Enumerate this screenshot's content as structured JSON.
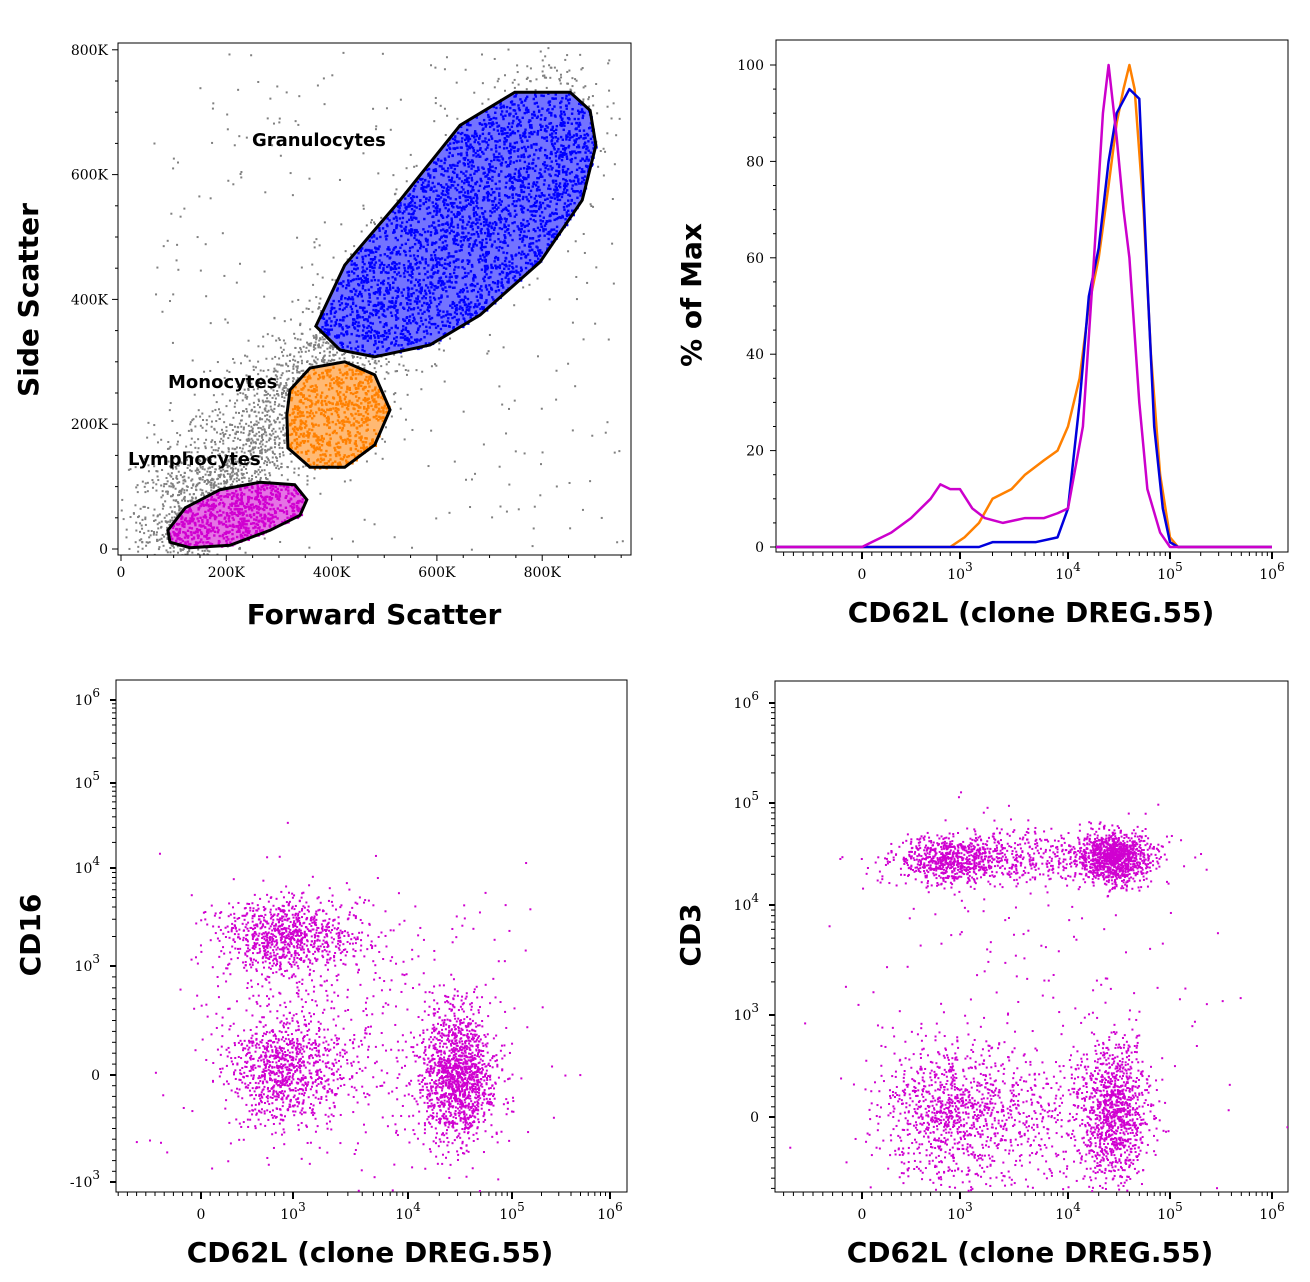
{
  "chart_data": [
    {
      "type": "scatter",
      "xlabel": "Forward Scatter",
      "ylabel": "Side Scatter",
      "xlim": [
        0,
        960
      ],
      "ylim": [
        0,
        810
      ],
      "units": "K",
      "x_ticks": [
        {
          "value": 0,
          "text": "0"
        },
        {
          "value": 200,
          "text": "200K"
        },
        {
          "value": 400,
          "text": "400K"
        },
        {
          "value": 600,
          "text": "600K"
        },
        {
          "value": 800,
          "text": "800K"
        }
      ],
      "y_ticks": [
        {
          "value": 0,
          "text": "0"
        },
        {
          "value": 200,
          "text": "200K"
        },
        {
          "value": 400,
          "text": "400K"
        },
        {
          "value": 600,
          "text": "600K"
        },
        {
          "value": 800,
          "text": "800K"
        }
      ],
      "background_color": "#808080",
      "gates": [
        {
          "name": "Granulocytes",
          "color": "#0000ff",
          "events": 3000,
          "polygon": [
            [
              370,
              357
            ],
            [
              425,
              455
            ],
            [
              530,
              559
            ],
            [
              644,
              679
            ],
            [
              748,
              732
            ],
            [
              853,
              732
            ],
            [
              891,
              703
            ],
            [
              902,
              647
            ],
            [
              876,
              559
            ],
            [
              796,
              460
            ],
            [
              682,
              375
            ],
            [
              587,
              327
            ],
            [
              482,
              308
            ],
            [
              416,
              319
            ]
          ]
        },
        {
          "name": "Monocytes",
          "color": "#ff8000",
          "events": 700,
          "polygon": [
            [
              321,
              255
            ],
            [
              359,
              290
            ],
            [
              425,
              300
            ],
            [
              482,
              279
            ],
            [
              511,
              223
            ],
            [
              482,
              167
            ],
            [
              425,
              131
            ],
            [
              359,
              131
            ],
            [
              317,
              162
            ],
            [
              315,
              215
            ]
          ]
        },
        {
          "name": "Lymphocytes",
          "color": "#d000d0",
          "events": 700,
          "polygon": [
            [
              89,
              30
            ],
            [
              122,
              66
            ],
            [
              188,
              95
            ],
            [
              264,
              107
            ],
            [
              330,
              103
            ],
            [
              353,
              79
            ],
            [
              340,
              54
            ],
            [
              283,
              30
            ],
            [
              207,
              6
            ],
            [
              131,
              2
            ],
            [
              93,
              11
            ]
          ]
        }
      ]
    },
    {
      "type": "line",
      "xlabel": "CD62L (clone DREG.55)",
      "ylabel": "% of Max",
      "ylim": [
        0,
        100
      ],
      "x_scale": "biexponential",
      "x_ticks": [
        {
          "value": 0,
          "text": "0"
        },
        {
          "value": 1000,
          "base": "10",
          "exp": "3"
        },
        {
          "value": 10000,
          "base": "10",
          "exp": "4"
        },
        {
          "value": 100000,
          "base": "10",
          "exp": "5"
        },
        {
          "value": 1000000,
          "base": "10",
          "exp": "6"
        }
      ],
      "y_ticks": [
        {
          "value": 0,
          "text": "0"
        },
        {
          "value": 20,
          "text": "20"
        },
        {
          "value": 40,
          "text": "40"
        },
        {
          "value": 60,
          "text": "60"
        },
        {
          "value": 80,
          "text": "80"
        },
        {
          "value": 100,
          "text": "100"
        }
      ],
      "series": [
        {
          "color": "#ff8000",
          "points": [
            [
              -1500,
              0
            ],
            [
              900,
              0
            ],
            [
              1100,
              2
            ],
            [
              1500,
              5
            ],
            [
              2000,
              10
            ],
            [
              3000,
              12
            ],
            [
              4000,
              15
            ],
            [
              6000,
              18
            ],
            [
              8000,
              20
            ],
            [
              10000,
              25
            ],
            [
              13000,
              35
            ],
            [
              16000,
              50
            ],
            [
              20000,
              60
            ],
            [
              25000,
              75
            ],
            [
              30000,
              88
            ],
            [
              35000,
              95
            ],
            [
              40000,
              100
            ],
            [
              45000,
              95
            ],
            [
              55000,
              70
            ],
            [
              65000,
              40
            ],
            [
              80000,
              15
            ],
            [
              100000,
              2
            ],
            [
              120000,
              0
            ],
            [
              1000000,
              0
            ]
          ]
        },
        {
          "color": "#0000dd",
          "points": [
            [
              -1500,
              0
            ],
            [
              1500,
              0
            ],
            [
              2000,
              1
            ],
            [
              3000,
              1
            ],
            [
              5000,
              1
            ],
            [
              8000,
              2
            ],
            [
              10000,
              8
            ],
            [
              13000,
              30
            ],
            [
              16000,
              52
            ],
            [
              20000,
              62
            ],
            [
              25000,
              80
            ],
            [
              30000,
              90
            ],
            [
              40000,
              95
            ],
            [
              50000,
              93
            ],
            [
              60000,
              55
            ],
            [
              70000,
              25
            ],
            [
              85000,
              8
            ],
            [
              100000,
              1
            ],
            [
              120000,
              0
            ],
            [
              1000000,
              0
            ]
          ]
        },
        {
          "color": "#cc00cc",
          "points": [
            [
              -1500,
              0
            ],
            [
              0,
              0
            ],
            [
              100,
              1
            ],
            [
              300,
              3
            ],
            [
              500,
              6
            ],
            [
              700,
              10
            ],
            [
              800,
              13
            ],
            [
              900,
              12
            ],
            [
              1000,
              12
            ],
            [
              1300,
              8
            ],
            [
              1700,
              6
            ],
            [
              2500,
              5
            ],
            [
              4000,
              6
            ],
            [
              6000,
              6
            ],
            [
              8000,
              7
            ],
            [
              10000,
              8
            ],
            [
              14000,
              25
            ],
            [
              18000,
              60
            ],
            [
              22000,
              90
            ],
            [
              25000,
              100
            ],
            [
              30000,
              85
            ],
            [
              35000,
              70
            ],
            [
              40000,
              60
            ],
            [
              50000,
              30
            ],
            [
              60000,
              12
            ],
            [
              80000,
              3
            ],
            [
              100000,
              0
            ],
            [
              1000000,
              0
            ]
          ]
        }
      ]
    },
    {
      "type": "scatter",
      "xlabel": "CD62L (clone DREG.55)",
      "ylabel": "CD16",
      "x_scale": "biexponential",
      "y_scale": "biexponential",
      "color": "#d000d0",
      "x_ticks": [
        {
          "value": 0,
          "text": "0"
        },
        {
          "value": 1000,
          "base": "10",
          "exp": "3"
        },
        {
          "value": 10000,
          "base": "10",
          "exp": "4"
        },
        {
          "value": 100000,
          "base": "10",
          "exp": "5"
        },
        {
          "value": 1000000,
          "base": "10",
          "exp": "6"
        }
      ],
      "y_ticks": [
        {
          "value": -1000,
          "base": "-10",
          "exp": "3"
        },
        {
          "value": 0,
          "text": "0"
        },
        {
          "value": 1000,
          "base": "10",
          "exp": "3"
        },
        {
          "value": 10000,
          "base": "10",
          "exp": "4"
        },
        {
          "value": 100000,
          "base": "10",
          "exp": "5"
        },
        {
          "value": 1000000,
          "base": "10",
          "exp": "6"
        }
      ],
      "populations": [
        {
          "center": [
            900,
            2000
          ],
          "spread_decades": [
            0.35,
            0.2
          ],
          "events": 900
        },
        {
          "center": [
            900,
            50
          ],
          "spread_decades": [
            0.3,
            0.25
          ],
          "events": 900
        },
        {
          "center": [
            30000,
            0
          ],
          "spread_decades": [
            0.18,
            0.3
          ],
          "events": 1400
        },
        {
          "center": [
            3000,
            400
          ],
          "spread_decades": [
            0.8,
            0.7
          ],
          "events": 500
        }
      ]
    },
    {
      "type": "scatter",
      "xlabel": "CD62L (clone DREG.55)",
      "ylabel": "CD3",
      "x_scale": "biexponential",
      "y_scale": "biexponential",
      "color": "#d000d0",
      "x_ticks": [
        {
          "value": 0,
          "text": "0"
        },
        {
          "value": 1000,
          "base": "10",
          "exp": "3"
        },
        {
          "value": 10000,
          "base": "10",
          "exp": "4"
        },
        {
          "value": 100000,
          "base": "10",
          "exp": "5"
        },
        {
          "value": 1000000,
          "base": "10",
          "exp": "6"
        }
      ],
      "y_ticks": [
        {
          "value": 0,
          "text": "0"
        },
        {
          "value": 1000,
          "base": "10",
          "exp": "3"
        },
        {
          "value": 10000,
          "base": "10",
          "exp": "4"
        },
        {
          "value": 100000,
          "base": "10",
          "exp": "5"
        },
        {
          "value": 1000000,
          "base": "10",
          "exp": "6"
        }
      ],
      "populations": [
        {
          "center": [
            900,
            28000
          ],
          "spread_decades": [
            0.3,
            0.12
          ],
          "events": 700
        },
        {
          "center": [
            28000,
            30000
          ],
          "spread_decades": [
            0.17,
            0.12
          ],
          "events": 1100
        },
        {
          "center": [
            900,
            50
          ],
          "spread_decades": [
            0.35,
            0.35
          ],
          "events": 900
        },
        {
          "center": [
            28000,
            50
          ],
          "spread_decades": [
            0.17,
            0.35
          ],
          "events": 1000
        },
        {
          "center": [
            5000,
            30000
          ],
          "spread_decades": [
            0.5,
            0.15
          ],
          "events": 400
        },
        {
          "center": [
            5000,
            0
          ],
          "spread_decades": [
            0.5,
            0.35
          ],
          "events": 400
        },
        {
          "center": [
            3000,
            2000
          ],
          "spread_decades": [
            1.0,
            0.8
          ],
          "events": 150
        }
      ]
    }
  ]
}
